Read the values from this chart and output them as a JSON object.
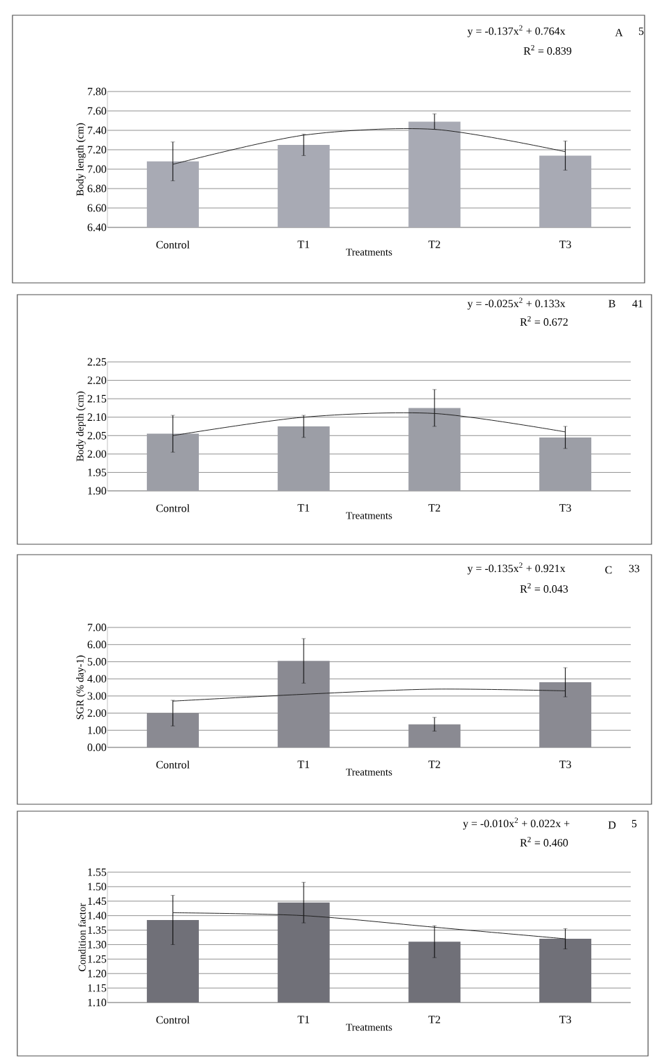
{
  "chart_data": [
    {
      "type": "bar",
      "xlabel": "Treatments",
      "ylabel": "Body length (cm)",
      "categories": [
        "Control",
        "T1",
        "T2",
        "T3"
      ],
      "ylim": [
        6.4,
        7.8
      ],
      "yticks": [
        {
          "value": 6.4,
          "label": "6.40"
        },
        {
          "value": 6.6,
          "label": "6.60"
        },
        {
          "value": 6.8,
          "label": "6.80"
        },
        {
          "value": 7.0,
          "label": "7.00"
        },
        {
          "value": 7.2,
          "label": "7.20"
        },
        {
          "value": 7.4,
          "label": "7.40"
        },
        {
          "value": 7.6,
          "label": "7.60"
        },
        {
          "value": 7.8,
          "label": "7.80"
        }
      ],
      "grid": "y",
      "series": [
        {
          "color": "#a8aab4",
          "values": [
            7.08,
            7.25,
            7.49,
            7.14
          ],
          "errors": [
            0.2,
            0.11,
            0.08,
            0.15
          ]
        },
        {
          "type": "line",
          "color": "#202020",
          "values": [
            7.05,
            7.35,
            7.41,
            7.18
          ]
        }
      ],
      "annotations": [
        "y = -0.137x$^{2}$ + 0.764x",
        "R$^{2}$ = 0.839",
        "A",
        "5"
      ]
    },
    {
      "type": "bar",
      "xlabel": "Treatments",
      "ylabel": "Body depth (cm)",
      "categories": [
        "Control",
        "T1",
        "T2",
        "T3"
      ],
      "ylim": [
        1.9,
        2.25
      ],
      "yticks": [
        {
          "value": 1.9,
          "label": "1.90"
        },
        {
          "value": 1.95,
          "label": "1.95"
        },
        {
          "value": 2.0,
          "label": "2.00"
        },
        {
          "value": 2.05,
          "label": "2.05"
        },
        {
          "value": 2.1,
          "label": "2.10"
        },
        {
          "value": 2.15,
          "label": "2.15"
        },
        {
          "value": 2.2,
          "label": "2.20"
        },
        {
          "value": 2.25,
          "label": "2.25"
        }
      ],
      "grid": "y",
      "series": [
        {
          "color": "#9c9ea6",
          "values": [
            2.055,
            2.075,
            2.125,
            2.045
          ],
          "errors": [
            0.05,
            0.03,
            0.05,
            0.03
          ]
        },
        {
          "type": "line",
          "color": "#202020",
          "values": [
            2.05,
            2.1,
            2.11,
            2.06
          ]
        }
      ],
      "annotations": [
        "y = -0.025x$^{2}$ + 0.133x",
        "R$^{2}$ = 0.672",
        "B",
        "41"
      ]
    },
    {
      "type": "bar",
      "xlabel": "Treatments",
      "ylabel": "SGR (% day-1)",
      "categories": [
        "Control",
        "T1",
        "T2",
        "T3"
      ],
      "ylim": [
        0,
        7
      ],
      "yticks": [
        {
          "value": 0,
          "label": "0.00"
        },
        {
          "value": 1,
          "label": "1.00"
        },
        {
          "value": 2,
          "label": "2.00"
        },
        {
          "value": 3,
          "label": "3.00"
        },
        {
          "value": 4,
          "label": "4.00"
        },
        {
          "value": 5,
          "label": "5.00"
        },
        {
          "value": 6,
          "label": "6.00"
        },
        {
          "value": 7,
          "label": "7.00"
        }
      ],
      "grid": "y",
      "series": [
        {
          "color": "#8a8a92",
          "values": [
            2.0,
            5.05,
            1.35,
            3.8
          ],
          "errors": [
            0.75,
            1.3,
            0.4,
            0.85
          ]
        },
        {
          "type": "line",
          "color": "#202020",
          "values": [
            2.7,
            3.1,
            3.4,
            3.3
          ]
        }
      ],
      "annotations": [
        "y = -0.135x$^{2}$ + 0.921x",
        "R$^{2}$ = 0.043",
        "C",
        "33"
      ]
    },
    {
      "type": "bar",
      "xlabel": "Treatments",
      "ylabel": "Condition factor",
      "categories": [
        "Control",
        "T1",
        "T2",
        "T3"
      ],
      "ylim": [
        1.1,
        1.55
      ],
      "yticks": [
        {
          "value": 1.1,
          "label": "1.10"
        },
        {
          "value": 1.15,
          "label": "1.15"
        },
        {
          "value": 1.2,
          "label": "1.20"
        },
        {
          "value": 1.25,
          "label": "1.25"
        },
        {
          "value": 1.3,
          "label": "1.30"
        },
        {
          "value": 1.35,
          "label": "1.35"
        },
        {
          "value": 1.4,
          "label": "1.40"
        },
        {
          "value": 1.45,
          "label": "1.45"
        },
        {
          "value": 1.5,
          "label": "1.50"
        },
        {
          "value": 1.55,
          "label": "1.55"
        }
      ],
      "grid": "y",
      "series": [
        {
          "color": "#707078",
          "values": [
            1.385,
            1.445,
            1.31,
            1.32
          ],
          "errors": [
            0.085,
            0.07,
            0.055,
            0.035
          ]
        },
        {
          "type": "line",
          "color": "#202020",
          "values": [
            1.41,
            1.4,
            1.36,
            1.32
          ]
        }
      ],
      "annotations": [
        "y = -0.010x$^{2}$ + 0.022x +",
        "R$^{2}$ = 0.460",
        "D",
        "5"
      ]
    }
  ]
}
